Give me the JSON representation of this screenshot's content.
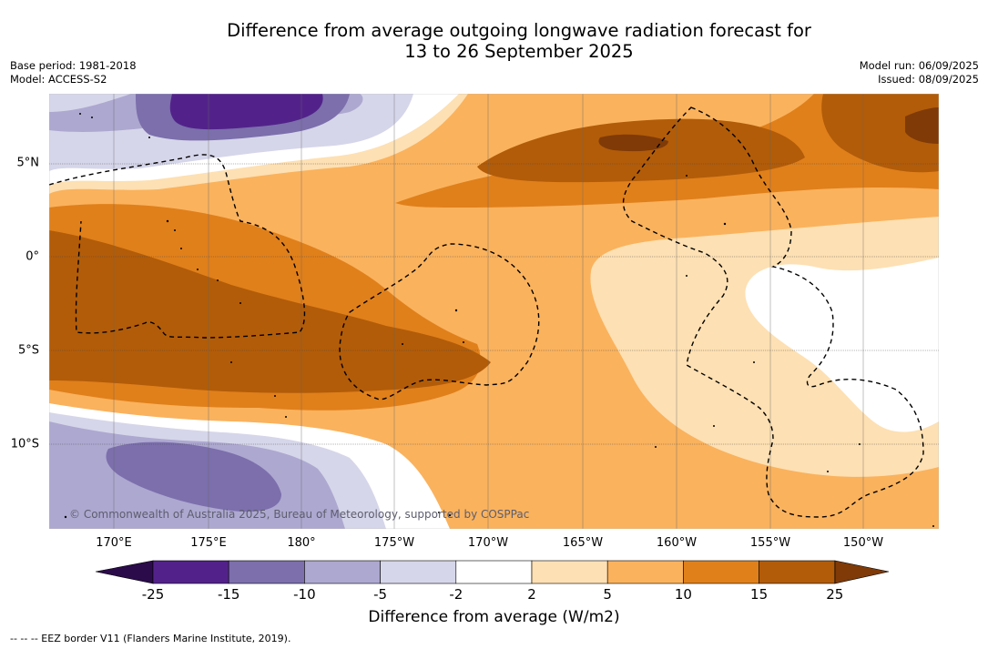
{
  "title_line1": "Difference from average outgoing longwave radiation forecast for",
  "title_line2": "13 to 26 September 2025",
  "base_period": "Base period: 1981-2018",
  "model": "Model: ACCESS-S2",
  "model_run": "Model run: 06/09/2025",
  "issued": "Issued: 08/09/2025",
  "lat_labels": [
    "5°N",
    "0°",
    "5°S",
    "10°S"
  ],
  "lon_labels": [
    "170°E",
    "175°E",
    "180°",
    "175°W",
    "170°W",
    "165°W",
    "160°W",
    "155°W",
    "150°W"
  ],
  "credit": "© Commonwealth of Australia 2025, Bureau of Meteorology, supported by COSPPac",
  "colorbar": {
    "ticks": [
      "-25",
      "-15",
      "-10",
      "-5",
      "-2",
      "2",
      "5",
      "10",
      "15",
      "25"
    ],
    "colors": [
      "#52228a",
      "#7c6fac",
      "#ada8d0",
      "#d6d6ea",
      "#ffffff",
      "#fde0b3",
      "#fab25d",
      "#e0801b",
      "#b25c09",
      "#7f3a07"
    ],
    "label": "Difference from average (W/m2)"
  },
  "eez_legend": "--  --  -- EEZ border V11 (Flanders Marine Institute, 2019)."
}
